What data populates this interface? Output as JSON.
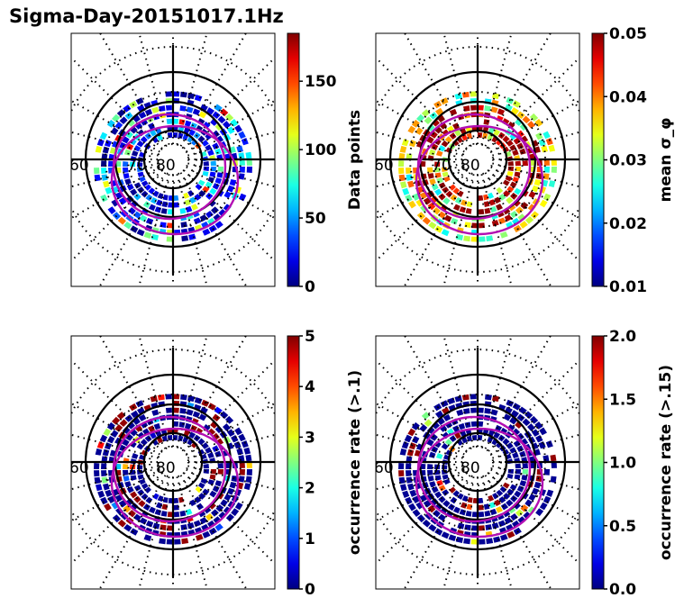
{
  "title": "Sigma-Day-20151017.1Hz",
  "chart_data": [
    {
      "type": "heatmap",
      "projection": "polar",
      "title": "",
      "lat_circles_labels": [
        "60",
        "70",
        "80"
      ],
      "colorbar": {
        "label": "Data points",
        "min": 0,
        "max": 185,
        "ticks": [
          0,
          50,
          100,
          150
        ],
        "tick_labels": [
          "0",
          "50",
          "100",
          "150"
        ],
        "colormap": "jet"
      },
      "dominant_level": "low (blue), sparse cyan/green, rare yellow/red"
    },
    {
      "type": "heatmap",
      "projection": "polar",
      "title": "",
      "lat_circles_labels": [
        "60",
        "70",
        "80"
      ],
      "colorbar": {
        "label": "mean σ_φ",
        "min": 0.01,
        "max": 0.05,
        "ticks": [
          0.01,
          0.02,
          0.03,
          0.04,
          0.05
        ],
        "tick_labels": [
          "0.01",
          "0.02",
          "0.03",
          "0.04",
          "0.05"
        ],
        "colormap": "jet"
      },
      "dominant_level": "high (dark red), outer ring cyan/green/yellow"
    },
    {
      "type": "heatmap",
      "projection": "polar",
      "title": "",
      "lat_circles_labels": [
        "60",
        "70",
        "80"
      ],
      "colorbar": {
        "label": "occurrence rate (>.1)",
        "min": 0,
        "max": 5,
        "ticks": [
          0,
          1,
          2,
          3,
          4,
          5
        ],
        "tick_labels": [
          "0",
          "1",
          "2",
          "3",
          "4",
          "5"
        ],
        "colormap": "jet"
      },
      "dominant_level": "mostly 0 (dark blue) with dark red patches"
    },
    {
      "type": "heatmap",
      "projection": "polar",
      "title": "",
      "lat_circles_labels": [
        "60",
        "70",
        "80"
      ],
      "colorbar": {
        "label": "occurrence rate (>.15)",
        "min": 0.0,
        "max": 2.0,
        "ticks": [
          0.0,
          0.5,
          1.0,
          1.5,
          2.0
        ],
        "tick_labels": [
          "0.0",
          "0.5",
          "1.0",
          "1.5",
          "2.0"
        ],
        "colormap": "jet"
      },
      "dominant_level": "mostly 0 (dark blue) with few dark red patches"
    }
  ],
  "colors": {
    "oval": "#b30fb3",
    "grid": "#000000"
  }
}
